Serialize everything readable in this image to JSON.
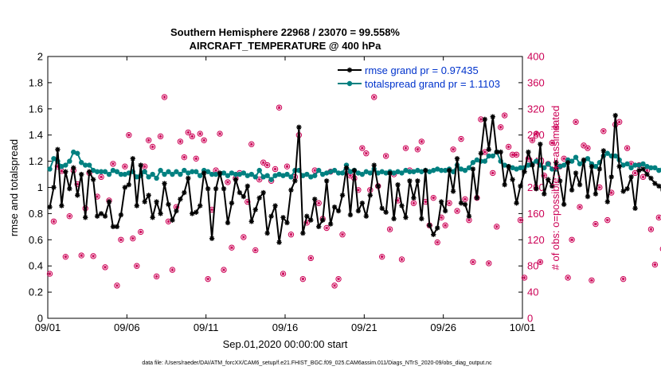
{
  "chart_data": {
    "type": "line",
    "title_line1": "Southern Hemisphere 22968 / 23070 = 99.558%",
    "title_line2": "AIRCRAFT_TEMPERATURE @ 400 hPa",
    "xlabel": "Sep.01,2020 00:00:00 start",
    "ylabel_left": "rmse and totalspread",
    "ylabel_right": "# of obs: o=possible; ∗=assimilated",
    "footer": "data file: /Users/raeder/DAI/ATM_forcXX/CAM6_setup/f.e21.FHIST_BGC.f09_025.CAM6assim.011/Diags_NTrS_2020-09/obs_diag_output.nc",
    "x_range_days": [
      0,
      30
    ],
    "x_ticks": [
      {
        "day": 0,
        "label": "09/01"
      },
      {
        "day": 5,
        "label": "09/06"
      },
      {
        "day": 10,
        "label": "09/11"
      },
      {
        "day": 15,
        "label": "09/16"
      },
      {
        "day": 20,
        "label": "09/21"
      },
      {
        "day": 25,
        "label": "09/26"
      },
      {
        "day": 30,
        "label": "10/01"
      }
    ],
    "ylim_left": [
      0,
      2
    ],
    "y_ticks_left": [
      "0",
      "0.2",
      "0.4",
      "0.6",
      "0.8",
      "1",
      "1.2",
      "1.4",
      "1.6",
      "1.8",
      "2"
    ],
    "ylim_right": [
      0,
      400
    ],
    "y_ticks_right": [
      "0",
      "40",
      "80",
      "120",
      "160",
      "200",
      "240",
      "280",
      "320",
      "360",
      "400"
    ],
    "samples_per_day": 4,
    "series": [
      {
        "name": "rmse grand pr = 0.97435",
        "color": "#000000",
        "marker": "asterisk",
        "values": [
          0.85,
          1.0,
          1.29,
          0.86,
          1.12,
          0.99,
          1.15,
          0.94,
          1.1,
          0.77,
          1.12,
          1.06,
          0.78,
          0.8,
          0.78,
          0.89,
          0.7,
          0.7,
          0.79,
          1.0,
          1.02,
          1.22,
          0.86,
          1.17,
          0.89,
          0.94,
          0.77,
          0.89,
          0.8,
          1.03,
          0.87,
          0.75,
          0.82,
          0.91,
          0.96,
          1.07,
          0.8,
          0.81,
          0.86,
          1.11,
          0.99,
          0.61,
          0.99,
          1.11,
          0.99,
          0.73,
          0.88,
          1.06,
          0.96,
          0.93,
          1.01,
          0.74,
          0.83,
          0.92,
          0.96,
          0.65,
          0.78,
          0.86,
          0.58,
          0.77,
          0.73,
          0.98,
          1.05,
          1.46,
          0.65,
          0.78,
          0.75,
          0.91,
          0.7,
          0.75,
          1.05,
          0.72,
          0.85,
          0.82,
          0.94,
          1.15,
          0.79,
          1.13,
          0.82,
          0.88,
          0.78,
          0.94,
          1.17,
          1.01,
          0.84,
          0.81,
          1.11,
          0.76,
          1.02,
          0.86,
          0.77,
          1.05,
          0.92,
          1.05,
          0.76,
          1.13,
          0.71,
          0.64,
          0.69,
          0.89,
          0.82,
          1.13,
          0.97,
          1.22,
          0.88,
          0.87,
          0.78,
          1.14,
          0.92,
          1.26,
          1.52,
          1.29,
          1.54,
          1.27,
          1.27,
          1.02,
          1.16,
          1.06,
          0.88,
          1.01,
          1.12,
          1.27,
          1.17,
          0.99,
          1.33,
          0.95,
          1.06,
          1.01,
          1.19,
          1.05,
          0.87,
          1.19,
          0.98,
          1.11,
          1.02,
          1.21,
          0.93,
          1.16,
          0.95,
          1.14,
          1.28,
          0.89,
          1.08,
          1.55,
          1.16,
          0.97,
          0.99,
          1.08,
          0.84,
          1.13,
          1.14,
          1.1,
          1.07,
          1.03,
          1.01,
          0.98,
          0.84,
          0.67,
          1.05,
          0.88
        ]
      },
      {
        "name": "totalspread grand pr = 1.1103",
        "color": "#008080",
        "marker": "dot",
        "values": [
          1.14,
          1.22,
          1.2,
          1.16,
          1.17,
          1.2,
          1.27,
          1.26,
          1.19,
          1.17,
          1.17,
          1.13,
          1.12,
          1.12,
          1.12,
          1.1,
          1.13,
          1.12,
          1.1,
          1.1,
          1.11,
          1.12,
          1.08,
          1.09,
          1.12,
          1.08,
          1.1,
          1.07,
          1.13,
          1.1,
          1.12,
          1.1,
          1.12,
          1.1,
          1.13,
          1.11,
          1.12,
          1.12,
          1.09,
          1.13,
          1.12,
          1.1,
          1.1,
          1.1,
          1.11,
          1.09,
          1.11,
          1.1,
          1.1,
          1.11,
          1.09,
          1.1,
          1.08,
          1.13,
          1.08,
          1.09,
          1.06,
          1.09,
          1.1,
          1.09,
          1.1,
          1.08,
          1.13,
          1.13,
          1.09,
          1.1,
          1.08,
          1.09,
          1.13,
          1.1,
          1.11,
          1.12,
          1.13,
          1.11,
          1.11,
          1.17,
          1.12,
          1.13,
          1.11,
          1.1,
          1.12,
          1.11,
          1.14,
          1.11,
          1.12,
          1.11,
          1.12,
          1.11,
          1.12,
          1.11,
          1.13,
          1.12,
          1.12,
          1.13,
          1.12,
          1.13,
          1.12,
          1.13,
          1.14,
          1.13,
          1.13,
          1.14,
          1.12,
          1.17,
          1.14,
          1.13,
          1.15,
          1.19,
          1.21,
          1.2,
          1.2,
          1.24,
          1.24,
          1.27,
          1.2,
          1.17,
          1.16,
          1.15,
          1.14,
          1.15,
          1.15,
          1.17,
          1.18,
          1.2,
          1.17,
          1.15,
          1.18,
          1.14,
          1.14,
          1.16,
          1.17,
          1.21,
          1.2,
          1.23,
          1.18,
          1.2,
          1.22,
          1.18,
          1.16,
          1.19,
          1.24,
          1.26,
          1.24,
          1.24,
          1.21,
          1.17,
          1.18,
          1.15,
          1.17,
          1.17,
          1.18,
          1.16,
          1.15,
          1.15,
          1.13,
          1.14,
          1.14,
          1.11,
          1.13,
          1.11
        ]
      },
      {
        "name": "# of obs possible",
        "color": "#cc0055",
        "marker": "circle",
        "axis": "right",
        "values": [
          68,
          148,
          232,
          225,
          94,
          156,
          226,
          205,
          96,
          168,
          222,
          95,
          186,
          216,
          78,
          180,
          236,
          50,
          120,
          232,
          280,
          122,
          80,
          132,
          232,
          272,
          262,
          64,
          278,
          338,
          148,
          74,
          170,
          270,
          246,
          284,
          278,
          244,
          282,
          272,
          60,
          166,
          226,
          282,
          74,
          208,
          108,
          214,
          222,
          124,
          178,
          266,
          104,
          212,
          238,
          234,
          210,
          228,
          322,
          68,
          232,
          128,
          216,
          280,
          60,
          146,
          92,
          226,
          176,
          152,
          138,
          224,
          50,
          60,
          128,
          224,
          218,
          214,
          196,
          260,
          252,
          196,
          338,
          202,
          94,
          248,
          136,
          220,
          180,
          90,
          260,
          226,
          176,
          258,
          270,
          178,
          142,
          184,
          116,
          154,
          142,
          176,
          258,
          164,
          274,
          182,
          150,
          86,
          184,
          304,
          254,
          84,
          222,
          140,
          292,
          310,
          262,
          250,
          250,
          150,
          62,
          244,
          272,
          282,
          86,
          218,
          236,
          268,
          292,
          232,
          244,
          62,
          120,
          300,
          170,
          264,
          260,
          58,
          144,
          200,
          286,
          150,
          192,
          296,
          300,
          60,
          260,
          236,
          222,
          234,
          216,
          226,
          136,
          82,
          154,
          106,
          210,
          226,
          80,
          256
        ]
      }
    ],
    "legend": {
      "position": "top-right",
      "entries": [
        "rmse grand pr = 0.97435",
        "totalspread grand pr = 1.1103"
      ]
    }
  },
  "colors": {
    "rmse": "#000000",
    "spread": "#008080",
    "obs": "#cc0055",
    "legend_text": "#0033cc"
  }
}
